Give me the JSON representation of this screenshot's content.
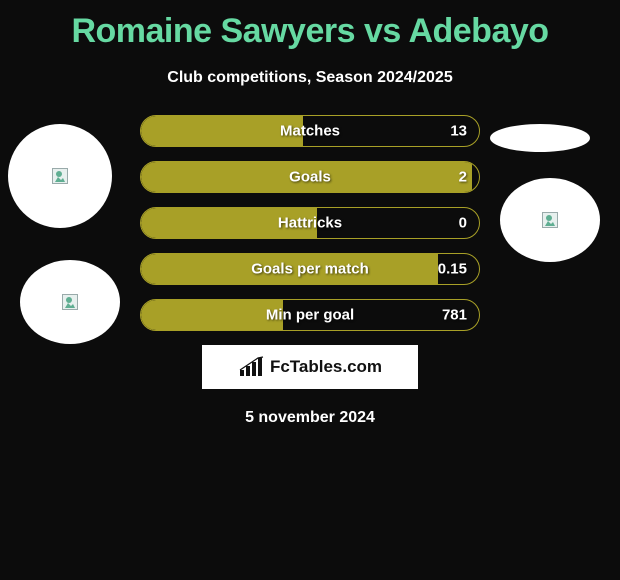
{
  "title": "Romaine Sawyers vs Adebayo",
  "subtitle": "Club competitions, Season 2024/2025",
  "date": "5 november 2024",
  "brand": "FcTables.com",
  "colors": {
    "background": "#0c0c0c",
    "accent_title": "#66d9a2",
    "pill_fill": "#a8a027",
    "pill_border": "#a8a027",
    "text": "#ffffff",
    "brand_box_bg": "#ffffff"
  },
  "stats": [
    {
      "label": "Matches",
      "right_value": "13",
      "fill_pct": 48
    },
    {
      "label": "Goals",
      "right_value": "2",
      "fill_pct": 98
    },
    {
      "label": "Hattricks",
      "right_value": "0",
      "fill_pct": 52
    },
    {
      "label": "Goals per match",
      "right_value": "0.15",
      "fill_pct": 88
    },
    {
      "label": "Min per goal",
      "right_value": "781",
      "fill_pct": 42
    }
  ],
  "avatars": [
    {
      "id": "av1",
      "name": "player-left-avatar-1"
    },
    {
      "id": "av2",
      "name": "player-left-avatar-2"
    },
    {
      "id": "av3",
      "name": "player-right-avatar-1"
    },
    {
      "id": "av4",
      "name": "player-right-avatar-2"
    }
  ]
}
